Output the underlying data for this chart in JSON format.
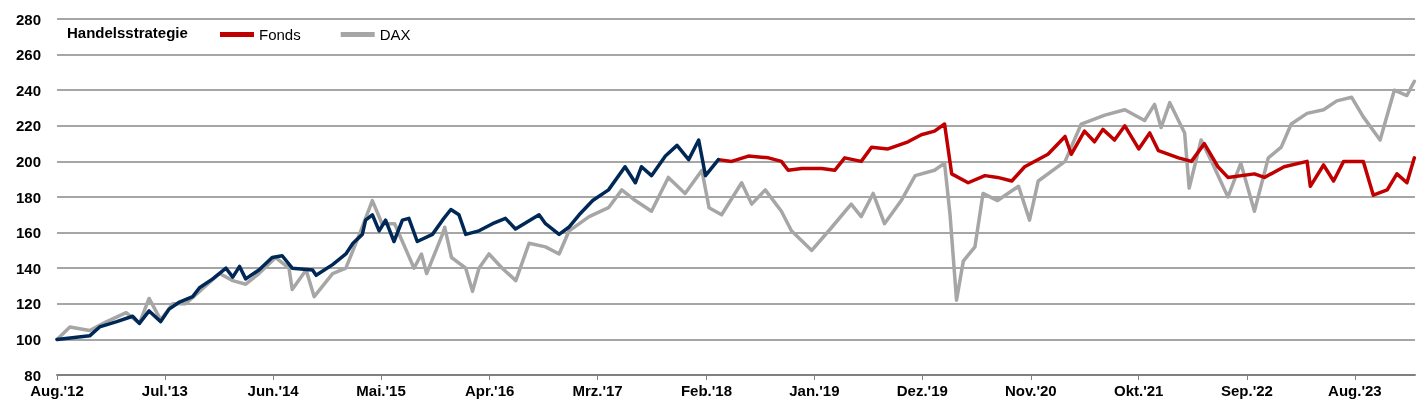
{
  "chart_data": {
    "type": "line",
    "legend_title": "Handelsstrategie",
    "legend": "top left",
    "grid": "y",
    "line_style": "solid",
    "marker": "none",
    "xlim": [
      "2012-08-01",
      "2024-02-03"
    ],
    "xticks": [
      {
        "value": "2012-08-01",
        "label": "Aug.'12"
      },
      {
        "value": "2013-07-01",
        "label": "Jul.'13"
      },
      {
        "value": "2014-06-01",
        "label": "Jun.'14"
      },
      {
        "value": "2015-05-01",
        "label": "Mai.'15"
      },
      {
        "value": "2016-04-01",
        "label": "Apr.'16"
      },
      {
        "value": "2017-03-01",
        "label": "Mrz.'17"
      },
      {
        "value": "2018-02-01",
        "label": "Feb.'18"
      },
      {
        "value": "2019-01-01",
        "label": "Jan.'19"
      },
      {
        "value": "2019-12-01",
        "label": "Dez.'19"
      },
      {
        "value": "2020-11-01",
        "label": "Nov.'20"
      },
      {
        "value": "2021-10-01",
        "label": "Okt.'21"
      },
      {
        "value": "2022-09-01",
        "label": "Sep.'22"
      },
      {
        "value": "2023-08-01",
        "label": "Aug.'23"
      }
    ],
    "ylim": [
      80,
      280
    ],
    "yticks": [
      80,
      100,
      120,
      140,
      160,
      180,
      200,
      220,
      240,
      260,
      280
    ],
    "series": [
      {
        "color": "#002857",
        "x": [
          "2012-08-01",
          "2012-11-10",
          "2012-12-11",
          "2013-02-02",
          "2013-03-23",
          "2013-04-13",
          "2013-05-13",
          "2013-06-18",
          "2013-07-14",
          "2013-08-15",
          "2013-09-25",
          "2013-10-16",
          "2013-11-26",
          "2014-01-06",
          "2014-01-27",
          "2014-02-17",
          "2014-03-08",
          "2014-04-18",
          "2014-05-29",
          "2014-06-29",
          "2014-07-30",
          "2014-10-01",
          "2014-10-12",
          "2014-12-02",
          "2015-01-12",
          "2015-02-03",
          "2015-03-04",
          "2015-03-14",
          "2015-04-04",
          "2015-04-25",
          "2015-05-15",
          "2015-06-10",
          "2015-07-06",
          "2015-07-26",
          "2015-08-21",
          "2015-10-07",
          "2015-11-07",
          "2015-12-03",
          "2015-12-28",
          "2016-01-18",
          "2016-02-28",
          "2016-04-10",
          "2016-05-20",
          "2016-06-20",
          "2016-09-01",
          "2016-09-21",
          "2016-11-02",
          "2016-12-02",
          "2017-01-03",
          "2017-02-14",
          "2017-04-04",
          "2017-05-25",
          "2017-06-26",
          "2017-07-15",
          "2017-08-15",
          "2017-09-27",
          "2017-11-02",
          "2017-12-08",
          "2018-01-08",
          "2018-01-29",
          "2018-03-10"
        ],
        "values": [
          100,
          102,
          107,
          110,
          113,
          109,
          116,
          110,
          117,
          121,
          124,
          129,
          134,
          140,
          135,
          141,
          134,
          139,
          146,
          147,
          140,
          139,
          136,
          142,
          148,
          154,
          159,
          167,
          170,
          161,
          167,
          155,
          167,
          168,
          155,
          159,
          167,
          173,
          170,
          159,
          161,
          165,
          168,
          162,
          170,
          165,
          159,
          163,
          170,
          178,
          184,
          197,
          188,
          197,
          192,
          203,
          209,
          201,
          212,
          192,
          201
        ]
      },
      {
        "name": "Fonds",
        "color": "#c00000",
        "x": [
          "2018-03-10",
          "2018-04-20",
          "2018-06-11",
          "2018-08-12",
          "2018-09-21",
          "2018-10-12",
          "2018-11-23",
          "2019-01-24",
          "2019-03-05",
          "2019-04-05",
          "2019-05-26",
          "2019-06-27",
          "2019-08-17",
          "2019-10-18",
          "2019-11-28",
          "2020-01-08",
          "2020-02-08",
          "2020-03-01",
          "2020-04-21",
          "2020-06-12",
          "2020-07-21",
          "2020-09-03",
          "2020-10-13",
          "2020-12-24",
          "2021-02-15",
          "2021-03-06",
          "2021-04-16",
          "2021-05-17",
          "2021-06-12",
          "2021-07-18",
          "2021-08-19",
          "2021-10-01",
          "2021-11-04",
          "2021-12-01",
          "2022-02-01",
          "2022-03-13",
          "2022-04-22",
          "2022-06-03",
          "2022-07-04",
          "2022-09-24",
          "2022-10-25",
          "2022-12-25",
          "2023-03-06",
          "2023-03-16",
          "2023-04-26",
          "2023-05-27",
          "2023-06-27",
          "2023-08-27",
          "2023-09-27",
          "2023-11-09",
          "2023-12-09",
          "2024-01-09",
          "2024-02-01"
        ],
        "values": [
          201,
          200,
          203,
          202,
          200,
          195,
          196,
          196,
          195,
          202,
          200,
          208,
          207,
          211,
          215,
          217,
          221,
          193,
          188,
          192,
          191,
          189,
          197,
          204,
          214,
          204,
          217,
          211,
          218,
          212,
          220,
          207,
          216,
          206,
          202,
          200,
          210,
          197,
          191,
          193,
          191,
          197,
          200,
          186,
          198,
          189,
          200,
          200,
          181,
          184,
          193,
          188,
          202
        ]
      },
      {
        "name": "DAX",
        "color": "#a6a6a6",
        "x": [
          "2012-08-01",
          "2012-09-10",
          "2012-11-10",
          "2013-01-02",
          "2013-03-03",
          "2013-04-13",
          "2013-05-13",
          "2013-06-18",
          "2013-07-25",
          "2013-09-03",
          "2013-10-16",
          "2013-12-17",
          "2014-01-27",
          "2014-03-08",
          "2014-04-18",
          "2014-06-09",
          "2014-07-20",
          "2014-07-30",
          "2014-09-11",
          "2014-10-06",
          "2014-12-02",
          "2015-01-12",
          "2015-02-23",
          "2015-04-04",
          "2015-05-04",
          "2015-06-12",
          "2015-07-06",
          "2015-08-11",
          "2015-09-03",
          "2015-09-19",
          "2015-11-07",
          "2015-11-14",
          "2015-12-05",
          "2016-01-18",
          "2016-02-08",
          "2016-02-28",
          "2016-03-30",
          "2016-05-10",
          "2016-06-21",
          "2016-08-01",
          "2016-09-21",
          "2016-11-02",
          "2016-12-03",
          "2017-02-03",
          "2017-04-04",
          "2017-05-15",
          "2017-06-26",
          "2017-08-15",
          "2017-10-06",
          "2017-11-27",
          "2018-01-18",
          "2018-02-09",
          "2018-03-20",
          "2018-05-21",
          "2018-06-21",
          "2018-08-02",
          "2018-09-21",
          "2018-10-22",
          "2018-12-24",
          "2019-02-24",
          "2019-04-25",
          "2019-05-26",
          "2019-07-02",
          "2019-08-06",
          "2019-09-27",
          "2019-11-09",
          "2020-01-08",
          "2020-02-08",
          "2020-02-25",
          "2020-03-16",
          "2020-04-06",
          "2020-05-12",
          "2020-06-06",
          "2020-07-21",
          "2020-09-24",
          "2020-10-28",
          "2020-11-24",
          "2021-02-15",
          "2021-04-06",
          "2021-06-18",
          "2021-08-19",
          "2021-10-19",
          "2021-11-19",
          "2021-12-09",
          "2022-01-05",
          "2022-02-20",
          "2022-03-06",
          "2022-04-12",
          "2022-05-22",
          "2022-07-04",
          "2022-08-13",
          "2022-09-24",
          "2022-11-06",
          "2022-12-16",
          "2023-01-16",
          "2023-03-06",
          "2023-04-26",
          "2023-06-06",
          "2023-07-22",
          "2023-08-27",
          "2023-10-18",
          "2023-12-01",
          "2024-01-09",
          "2024-02-01"
        ],
        "values": [
          100,
          107,
          105,
          110,
          115,
          109,
          123,
          111,
          120,
          120,
          127,
          137,
          133,
          131,
          137,
          146,
          140,
          128,
          139,
          124,
          137,
          140,
          159,
          178,
          165,
          165,
          155,
          140,
          148,
          137,
          159,
          163,
          146,
          140,
          127,
          140,
          148,
          140,
          133,
          154,
          152,
          148,
          161,
          169,
          174,
          184,
          178,
          172,
          191,
          182,
          195,
          174,
          170,
          188,
          176,
          184,
          172,
          161,
          150,
          163,
          176,
          169,
          182,
          165,
          178,
          192,
          195,
          199,
          170,
          122,
          144,
          152,
          182,
          178,
          186,
          167,
          189,
          200,
          221,
          226,
          229,
          223,
          232,
          219,
          233,
          216,
          185,
          212,
          197,
          180,
          199,
          172,
          202,
          208,
          221,
          227,
          229,
          234,
          236,
          225,
          212,
          240,
          237,
          245
        ]
      }
    ]
  }
}
